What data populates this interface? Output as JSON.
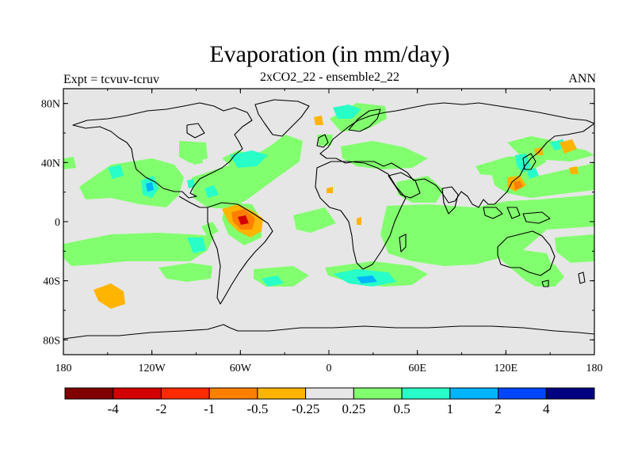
{
  "title": "Evaporation (in mm/day)",
  "experiment_label": "Expt = tcvuv-tcruv",
  "subtitle": "2xCO2_22 - ensemble2_22",
  "season": "ANN",
  "map": {
    "projection": "cylindrical equidistant",
    "lon_range": [
      -180,
      180
    ],
    "lat_range": [
      -90,
      90
    ],
    "background_color": "#e6e6e6",
    "lat_ticks": [
      {
        "value": 80,
        "label": "80N"
      },
      {
        "value": 40,
        "label": "40N"
      },
      {
        "value": 0,
        "label": "0"
      },
      {
        "value": -40,
        "label": "40S"
      },
      {
        "value": -80,
        "label": "80S"
      }
    ],
    "lon_ticks": [
      {
        "value": -180,
        "label": "180"
      },
      {
        "value": -120,
        "label": "120W"
      },
      {
        "value": -60,
        "label": "60W"
      },
      {
        "value": 0,
        "label": "0"
      },
      {
        "value": 60,
        "label": "60E"
      },
      {
        "value": 120,
        "label": "120E"
      },
      {
        "value": 180,
        "label": "180"
      }
    ]
  },
  "colorbar": {
    "colors": [
      "#800000",
      "#d20000",
      "#ff2a00",
      "#ff7f00",
      "#ffb400",
      "#e6e6e6",
      "#82ff6e",
      "#28ffc8",
      "#00b4ff",
      "#0046ff",
      "#000080"
    ],
    "labels": [
      "-4",
      "-2",
      "-1",
      "-0.5",
      "-0.25",
      "0.25",
      "0.5",
      "1",
      "2",
      "4"
    ]
  }
}
